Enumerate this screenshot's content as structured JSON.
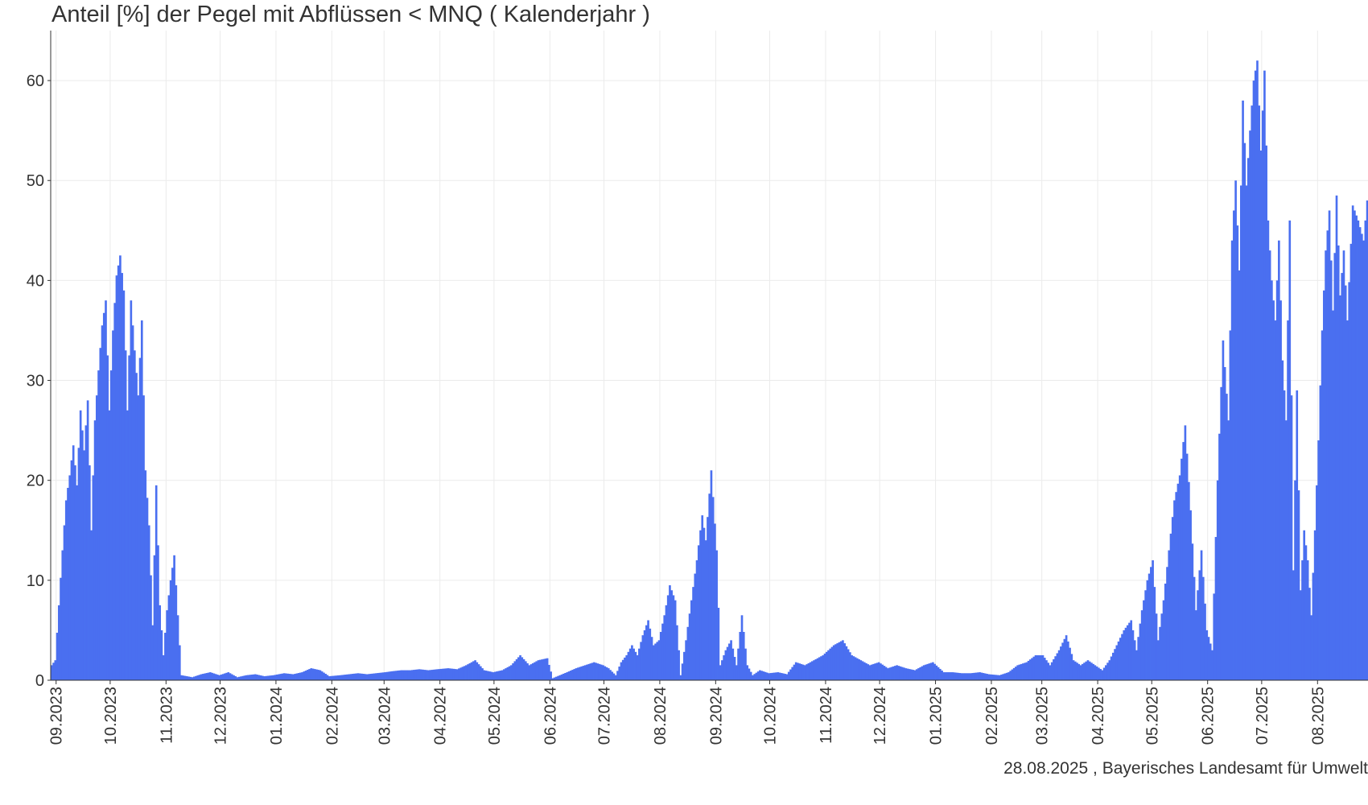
{
  "title": "Anteil [%] der Pegel mit Abflüssen < MNQ ( Kalenderjahr )",
  "source": "28.08.2025 , Bayerisches Landesamt für Umwelt",
  "colors": {
    "bar": "#4a6ff0",
    "grid": "#ebebeb",
    "axis": "#333333"
  },
  "chart_data": {
    "type": "bar",
    "title": "Anteil [%] der Pegel mit Abflüssen < MNQ ( Kalenderjahr )",
    "xlabel": "",
    "ylabel": "",
    "ylim": [
      0,
      65
    ],
    "yticks": [
      0,
      10,
      20,
      30,
      40,
      50,
      60
    ],
    "x_range": [
      "2023-08-29",
      "2025-08-28"
    ],
    "xticks": [
      {
        "date": "2023-09-01",
        "label": "09.2023"
      },
      {
        "date": "2023-10-01",
        "label": "10.2023"
      },
      {
        "date": "2023-11-01",
        "label": "11.2023"
      },
      {
        "date": "2023-12-01",
        "label": "12.2023"
      },
      {
        "date": "2024-01-01",
        "label": "01.2024"
      },
      {
        "date": "2024-02-01",
        "label": "02.2024"
      },
      {
        "date": "2024-03-01",
        "label": "03.2024"
      },
      {
        "date": "2024-04-01",
        "label": "04.2024"
      },
      {
        "date": "2024-05-01",
        "label": "05.2024"
      },
      {
        "date": "2024-06-01",
        "label": "06.2024"
      },
      {
        "date": "2024-07-01",
        "label": "07.2024"
      },
      {
        "date": "2024-08-01",
        "label": "08.2024"
      },
      {
        "date": "2024-09-01",
        "label": "09.2024"
      },
      {
        "date": "2024-10-01",
        "label": "10.2024"
      },
      {
        "date": "2024-11-01",
        "label": "11.2024"
      },
      {
        "date": "2024-12-01",
        "label": "12.2024"
      },
      {
        "date": "2025-01-01",
        "label": "01.2025"
      },
      {
        "date": "2025-02-01",
        "label": "02.2025"
      },
      {
        "date": "2025-03-01",
        "label": "03.2025"
      },
      {
        "date": "2025-04-01",
        "label": "04.2025"
      },
      {
        "date": "2025-05-01",
        "label": "05.2025"
      },
      {
        "date": "2025-06-01",
        "label": "06.2025"
      },
      {
        "date": "2025-07-01",
        "label": "07.2025"
      },
      {
        "date": "2025-08-01",
        "label": "08.2025"
      }
    ],
    "grid": true,
    "series": [
      {
        "points": [
          [
            "2023-08-29",
            1.5
          ],
          [
            "2023-08-31",
            2
          ],
          [
            "2023-09-02",
            7.5
          ],
          [
            "2023-09-04",
            13
          ],
          [
            "2023-09-06",
            18
          ],
          [
            "2023-09-08",
            20.5
          ],
          [
            "2023-09-10",
            23.5
          ],
          [
            "2023-09-12",
            19.5
          ],
          [
            "2023-09-14",
            27
          ],
          [
            "2023-09-16",
            23
          ],
          [
            "2023-09-18",
            28
          ],
          [
            "2023-09-20",
            15
          ],
          [
            "2023-09-22",
            26
          ],
          [
            "2023-09-24",
            31
          ],
          [
            "2023-09-26",
            35.5
          ],
          [
            "2023-09-28",
            38
          ],
          [
            "2023-09-30",
            27
          ],
          [
            "2023-10-02",
            35
          ],
          [
            "2023-10-04",
            40.5
          ],
          [
            "2023-10-06",
            42.5
          ],
          [
            "2023-10-08",
            39
          ],
          [
            "2023-10-10",
            27
          ],
          [
            "2023-10-12",
            38
          ],
          [
            "2023-10-14",
            33
          ],
          [
            "2023-10-16",
            28.5
          ],
          [
            "2023-10-18",
            36
          ],
          [
            "2023-10-20",
            21
          ],
          [
            "2023-10-22",
            15.5
          ],
          [
            "2023-10-24",
            5.5
          ],
          [
            "2023-10-26",
            19.5
          ],
          [
            "2023-10-28",
            7.5
          ],
          [
            "2023-10-30",
            2.5
          ],
          [
            "2023-11-01",
            7
          ],
          [
            "2023-11-03",
            10
          ],
          [
            "2023-11-05",
            12.5
          ],
          [
            "2023-11-07",
            6.5
          ],
          [
            "2023-11-09",
            0.5
          ],
          [
            "2023-11-15",
            0.3
          ],
          [
            "2023-11-20",
            0.6
          ],
          [
            "2023-11-25",
            0.8
          ],
          [
            "2023-11-30",
            0.5
          ],
          [
            "2023-12-05",
            0.8
          ],
          [
            "2023-12-10",
            0.3
          ],
          [
            "2023-12-15",
            0.5
          ],
          [
            "2023-12-20",
            0.6
          ],
          [
            "2023-12-25",
            0.4
          ],
          [
            "2023-12-30",
            0.5
          ],
          [
            "2024-01-05",
            0.7
          ],
          [
            "2024-01-10",
            0.6
          ],
          [
            "2024-01-15",
            0.8
          ],
          [
            "2024-01-20",
            1.2
          ],
          [
            "2024-01-25",
            1.0
          ],
          [
            "2024-01-30",
            0.4
          ],
          [
            "2024-02-05",
            0.5
          ],
          [
            "2024-02-10",
            0.6
          ],
          [
            "2024-02-15",
            0.7
          ],
          [
            "2024-02-20",
            0.6
          ],
          [
            "2024-02-25",
            0.7
          ],
          [
            "2024-03-01",
            0.8
          ],
          [
            "2024-03-05",
            0.9
          ],
          [
            "2024-03-10",
            1.0
          ],
          [
            "2024-03-15",
            1.0
          ],
          [
            "2024-03-20",
            1.1
          ],
          [
            "2024-03-25",
            1.0
          ],
          [
            "2024-03-30",
            1.1
          ],
          [
            "2024-04-05",
            1.2
          ],
          [
            "2024-04-10",
            1.1
          ],
          [
            "2024-04-15",
            1.5
          ],
          [
            "2024-04-20",
            2.0
          ],
          [
            "2024-04-25",
            1.0
          ],
          [
            "2024-04-30",
            0.8
          ],
          [
            "2024-05-05",
            1.0
          ],
          [
            "2024-05-10",
            1.5
          ],
          [
            "2024-05-15",
            2.5
          ],
          [
            "2024-05-20",
            1.5
          ],
          [
            "2024-05-25",
            2.0
          ],
          [
            "2024-05-30",
            2.2
          ],
          [
            "2024-06-02",
            0.2
          ],
          [
            "2024-06-06",
            0.5
          ],
          [
            "2024-06-10",
            0.8
          ],
          [
            "2024-06-15",
            1.2
          ],
          [
            "2024-06-20",
            1.5
          ],
          [
            "2024-06-25",
            1.8
          ],
          [
            "2024-06-30",
            1.5
          ],
          [
            "2024-07-03",
            1.2
          ],
          [
            "2024-07-07",
            0.5
          ],
          [
            "2024-07-10",
            1.8
          ],
          [
            "2024-07-13",
            2.5
          ],
          [
            "2024-07-16",
            3.5
          ],
          [
            "2024-07-19",
            2.5
          ],
          [
            "2024-07-22",
            4.5
          ],
          [
            "2024-07-25",
            6.0
          ],
          [
            "2024-07-28",
            3.5
          ],
          [
            "2024-07-31",
            4.0
          ],
          [
            "2024-08-03",
            6.5
          ],
          [
            "2024-08-06",
            9.5
          ],
          [
            "2024-08-09",
            8.0
          ],
          [
            "2024-08-12",
            0.5
          ],
          [
            "2024-08-15",
            4.0
          ],
          [
            "2024-08-18",
            8.0
          ],
          [
            "2024-08-21",
            12.0
          ],
          [
            "2024-08-24",
            16.5
          ],
          [
            "2024-08-26",
            14.0
          ],
          [
            "2024-08-29",
            21.0
          ],
          [
            "2024-09-01",
            13.0
          ],
          [
            "2024-09-03",
            1.5
          ],
          [
            "2024-09-06",
            3.0
          ],
          [
            "2024-09-09",
            4.0
          ],
          [
            "2024-09-12",
            1.5
          ],
          [
            "2024-09-15",
            6.5
          ],
          [
            "2024-09-18",
            1.5
          ],
          [
            "2024-09-21",
            0.5
          ],
          [
            "2024-09-25",
            1.0
          ],
          [
            "2024-09-30",
            0.7
          ],
          [
            "2024-10-05",
            0.8
          ],
          [
            "2024-10-10",
            0.6
          ],
          [
            "2024-10-15",
            1.8
          ],
          [
            "2024-10-20",
            1.5
          ],
          [
            "2024-10-25",
            2.0
          ],
          [
            "2024-10-30",
            2.5
          ],
          [
            "2024-11-05",
            3.5
          ],
          [
            "2024-11-10",
            4.0
          ],
          [
            "2024-11-15",
            2.5
          ],
          [
            "2024-11-20",
            2.0
          ],
          [
            "2024-11-25",
            1.5
          ],
          [
            "2024-11-30",
            1.8
          ],
          [
            "2024-12-05",
            1.2
          ],
          [
            "2024-12-10",
            1.5
          ],
          [
            "2024-12-15",
            1.2
          ],
          [
            "2024-12-20",
            1.0
          ],
          [
            "2024-12-25",
            1.5
          ],
          [
            "2024-12-30",
            1.8
          ],
          [
            "2025-01-05",
            0.8
          ],
          [
            "2025-01-10",
            0.8
          ],
          [
            "2025-01-15",
            0.7
          ],
          [
            "2025-01-20",
            0.7
          ],
          [
            "2025-01-25",
            0.8
          ],
          [
            "2025-01-30",
            0.6
          ],
          [
            "2025-02-05",
            0.5
          ],
          [
            "2025-02-10",
            0.8
          ],
          [
            "2025-02-15",
            1.5
          ],
          [
            "2025-02-20",
            1.8
          ],
          [
            "2025-02-25",
            2.5
          ],
          [
            "2025-03-01",
            2.5
          ],
          [
            "2025-03-05",
            1.5
          ],
          [
            "2025-03-10",
            3.0
          ],
          [
            "2025-03-14",
            4.5
          ],
          [
            "2025-03-18",
            2.0
          ],
          [
            "2025-03-22",
            1.5
          ],
          [
            "2025-03-26",
            2.0
          ],
          [
            "2025-03-30",
            1.5
          ],
          [
            "2025-04-03",
            1.0
          ],
          [
            "2025-04-07",
            2.0
          ],
          [
            "2025-04-11",
            3.5
          ],
          [
            "2025-04-15",
            5.0
          ],
          [
            "2025-04-19",
            6.0
          ],
          [
            "2025-04-22",
            3.0
          ],
          [
            "2025-04-25",
            7.0
          ],
          [
            "2025-04-28",
            10.0
          ],
          [
            "2025-05-01",
            12.0
          ],
          [
            "2025-05-04",
            4.0
          ],
          [
            "2025-05-07",
            8.0
          ],
          [
            "2025-05-10",
            13.0
          ],
          [
            "2025-05-13",
            18.0
          ],
          [
            "2025-05-16",
            20.5
          ],
          [
            "2025-05-19",
            25.5
          ],
          [
            "2025-05-22",
            17.0
          ],
          [
            "2025-05-25",
            7.0
          ],
          [
            "2025-05-28",
            13.0
          ],
          [
            "2025-05-31",
            5.0
          ],
          [
            "2025-06-03",
            3.0
          ],
          [
            "2025-06-06",
            20.0
          ],
          [
            "2025-06-09",
            34.0
          ],
          [
            "2025-06-12",
            26.0
          ],
          [
            "2025-06-14",
            44.0
          ],
          [
            "2025-06-16",
            50.0
          ],
          [
            "2025-06-18",
            41.0
          ],
          [
            "2025-06-20",
            58.0
          ],
          [
            "2025-06-22",
            49.5
          ],
          [
            "2025-06-24",
            55.0
          ],
          [
            "2025-06-26",
            60.0
          ],
          [
            "2025-06-28",
            62.0
          ],
          [
            "2025-06-30",
            53.0
          ],
          [
            "2025-07-02",
            61.0
          ],
          [
            "2025-07-04",
            46.0
          ],
          [
            "2025-07-06",
            40.0
          ],
          [
            "2025-07-08",
            36.0
          ],
          [
            "2025-07-10",
            44.0
          ],
          [
            "2025-07-12",
            32.0
          ],
          [
            "2025-07-14",
            26.0
          ],
          [
            "2025-07-16",
            46.0
          ],
          [
            "2025-07-18",
            11.0
          ],
          [
            "2025-07-20",
            29.0
          ],
          [
            "2025-07-22",
            9.0
          ],
          [
            "2025-07-24",
            15.0
          ],
          [
            "2025-07-26",
            12.0
          ],
          [
            "2025-07-28",
            6.5
          ],
          [
            "2025-07-30",
            15.0
          ],
          [
            "2025-08-01",
            24.0
          ],
          [
            "2025-08-03",
            35.0
          ],
          [
            "2025-08-05",
            43.0
          ],
          [
            "2025-08-07",
            47.0
          ],
          [
            "2025-08-09",
            37.0
          ],
          [
            "2025-08-11",
            48.5
          ],
          [
            "2025-08-13",
            38.5
          ],
          [
            "2025-08-15",
            43.0
          ],
          [
            "2025-08-17",
            36.0
          ],
          [
            "2025-08-20",
            47.5
          ],
          [
            "2025-08-23",
            46.0
          ],
          [
            "2025-08-26",
            44.0
          ],
          [
            "2025-08-28",
            48.0
          ]
        ]
      }
    ]
  }
}
